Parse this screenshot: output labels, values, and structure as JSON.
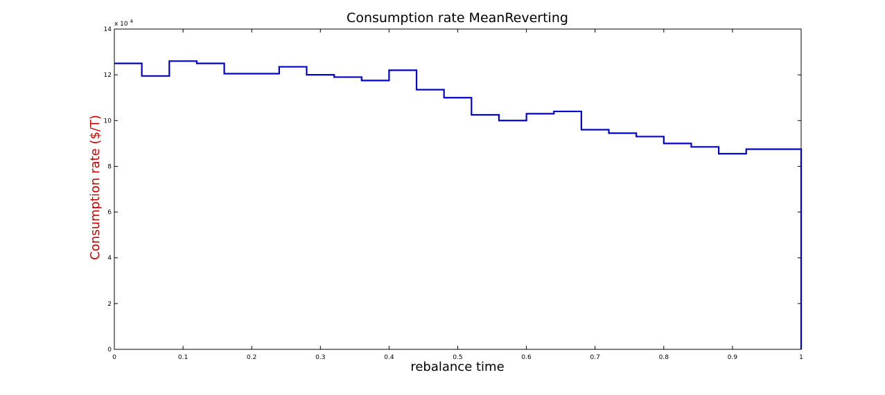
{
  "chart_data": {
    "type": "line",
    "step": "post",
    "title": "Consumption rate MeanReverting",
    "xlabel": "rebalance time",
    "ylabel": "Consumption rate ($/T)",
    "xlim": [
      0,
      1
    ],
    "ylim": [
      0,
      140000
    ],
    "y_exponent_label": "x 10",
    "y_exponent_power": "4",
    "x_ticks": [
      0,
      0.1,
      0.2,
      0.3,
      0.4,
      0.5,
      0.6,
      0.7,
      0.8,
      0.9,
      1
    ],
    "x_tick_labels": [
      "0",
      "0.1",
      "0.2",
      "0.3",
      "0.4",
      "0.5",
      "0.6",
      "0.7",
      "0.8",
      "0.9",
      "1"
    ],
    "y_ticks": [
      0,
      20000,
      40000,
      60000,
      80000,
      100000,
      120000,
      140000
    ],
    "y_tick_labels": [
      "0",
      "2",
      "4",
      "6",
      "8",
      "10",
      "12",
      "14"
    ],
    "grid": false,
    "line_color": "#0000cc",
    "ylabel_color": "#cc0000",
    "series": [
      {
        "x": [
          0,
          0.04,
          0.08,
          0.12,
          0.16,
          0.2,
          0.24,
          0.28,
          0.32,
          0.36,
          0.4,
          0.44,
          0.48,
          0.52,
          0.56,
          0.6,
          0.64,
          0.68,
          0.72,
          0.76,
          0.8,
          0.84,
          0.88,
          0.92,
          0.96,
          1.0,
          1.0
        ],
        "y": [
          125000,
          119500,
          126000,
          125000,
          120500,
          120500,
          123500,
          120000,
          119000,
          117500,
          122000,
          113500,
          110000,
          102500,
          100000,
          103000,
          104000,
          96000,
          94500,
          93000,
          90000,
          88500,
          85500,
          87500,
          87500,
          87500,
          0
        ]
      }
    ]
  }
}
